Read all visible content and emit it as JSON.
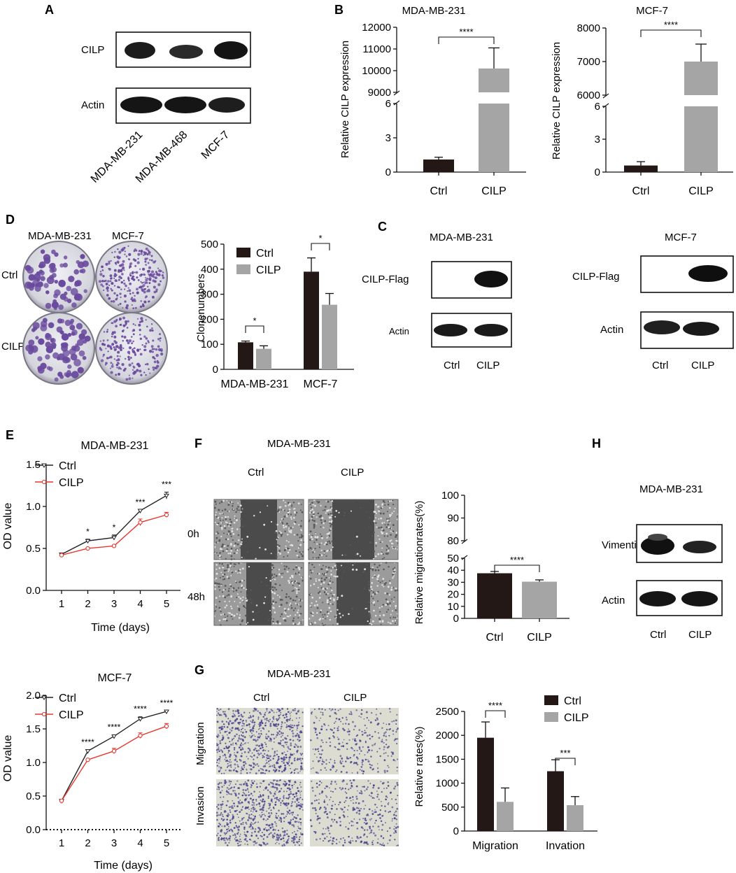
{
  "panels": {
    "A": {
      "letter": "A",
      "row_labels": [
        "CILP",
        "Actin"
      ],
      "lane_labels": [
        "MDA-MB-231",
        "MDA-MB-468",
        "MCF-7"
      ]
    },
    "B": {
      "letter": "B"
    },
    "C": {
      "letter": "C",
      "left": {
        "title": "MDA-MB-231",
        "rows": [
          "CILP-Flag",
          "Actin"
        ],
        "lanes": [
          "Ctrl",
          "CILP"
        ]
      },
      "right": {
        "title": "MCF-7",
        "rows": [
          "CILP-Flag",
          "Actin"
        ],
        "lanes": [
          "Ctrl",
          "CILP"
        ]
      }
    },
    "D": {
      "letter": "D",
      "col_labels": [
        "MDA-MB-231",
        "MCF-7"
      ],
      "row_labels": [
        "Ctrl",
        "CILP"
      ]
    },
    "E": {
      "letter": "E"
    },
    "F": {
      "letter": "F",
      "title": "MDA-MB-231",
      "col_labels": [
        "Ctrl",
        "CILP"
      ],
      "row_labels": [
        "0h",
        "48h"
      ]
    },
    "G": {
      "letter": "G",
      "title": "MDA-MB-231",
      "col_labels": [
        "Ctrl",
        "CILP"
      ],
      "row_labels": [
        "Migration",
        "Invasion"
      ]
    },
    "H": {
      "letter": "H",
      "title": "MDA-MB-231",
      "rows": [
        "Vimentin",
        "Actin"
      ],
      "lanes": [
        "Ctrl",
        "CILP"
      ]
    }
  },
  "colors": {
    "ctrl": "#231815",
    "cilp": "#a5a5a5",
    "line_ctrl": "#222222",
    "line_cilp": "#e8372e",
    "crystal_violet": "#6a4a9e"
  },
  "chart_data": [
    {
      "id": "B1",
      "type": "bar",
      "title": "MDA-MB-231",
      "ylabel": "Relative CILP expression",
      "categories": [
        "Ctrl",
        "CILP"
      ],
      "values": [
        1.1,
        10100
      ],
      "errors": [
        0.2,
        950
      ],
      "ylim": [
        0,
        12000
      ],
      "broken_axis": {
        "lower": [
          0,
          6
        ],
        "upper": [
          9000,
          12000
        ]
      },
      "yticks_lower": [
        "0",
        "3",
        "6"
      ],
      "yticks_upper": [
        "9000",
        "10000",
        "11000",
        "12000"
      ],
      "significance": "****"
    },
    {
      "id": "B2",
      "type": "bar",
      "title": "MCF-7",
      "ylabel": "Relative CILP expression",
      "categories": [
        "Ctrl",
        "CILP"
      ],
      "values": [
        0.6,
        7000
      ],
      "errors": [
        0.35,
        520
      ],
      "ylim": [
        0,
        8000
      ],
      "broken_axis": {
        "lower": [
          0,
          6
        ],
        "upper": [
          6000,
          8000
        ]
      },
      "yticks_lower": [
        "0",
        "3",
        "6"
      ],
      "yticks_upper": [
        "6000",
        "7000",
        "8000"
      ],
      "significance": "****"
    },
    {
      "id": "D",
      "type": "bar",
      "ylabel": "Clonenumbers",
      "categories": [
        "MDA-MB-231",
        "MCF-7"
      ],
      "series": [
        {
          "name": "Ctrl",
          "values": [
            108,
            390
          ],
          "errors": [
            5,
            55
          ]
        },
        {
          "name": "CILP",
          "values": [
            82,
            258
          ],
          "errors": [
            12,
            45
          ]
        }
      ],
      "ylim": [
        0,
        500
      ],
      "yticks": [
        "0",
        "100",
        "200",
        "300",
        "400",
        "500"
      ],
      "significance": [
        "*",
        "*"
      ],
      "legend": "top-left"
    },
    {
      "id": "E1",
      "type": "line",
      "title": "MDA-MB-231",
      "xlabel": "Time (days)",
      "ylabel": "OD value",
      "x": [
        1,
        2,
        3,
        4,
        5
      ],
      "series": [
        {
          "name": "Ctrl",
          "values": [
            0.43,
            0.59,
            0.63,
            0.95,
            1.13
          ],
          "errors": [
            0.01,
            0.02,
            0.03,
            0.01,
            0.04
          ]
        },
        {
          "name": "CILP",
          "values": [
            0.42,
            0.5,
            0.53,
            0.81,
            0.9
          ],
          "errors": [
            0.01,
            0.01,
            0.01,
            0.04,
            0.03
          ]
        }
      ],
      "ylim": [
        0,
        1.5
      ],
      "yticks": [
        "0.0",
        "0.5",
        "1.0",
        "1.5"
      ],
      "xticks": [
        "1",
        "2",
        "3",
        "4",
        "5"
      ],
      "significance": [
        "",
        "*",
        "*",
        "***",
        "***"
      ],
      "legend": "top-left"
    },
    {
      "id": "E2",
      "type": "line",
      "title": "MCF-7",
      "xlabel": "Time (days)",
      "ylabel": "OD value",
      "x": [
        1,
        2,
        3,
        4,
        5
      ],
      "series": [
        {
          "name": "Ctrl",
          "values": [
            0.43,
            1.17,
            1.39,
            1.65,
            1.76
          ],
          "errors": [
            0.01,
            0.02,
            0.02,
            0.03,
            0.01
          ]
        },
        {
          "name": "CILP",
          "values": [
            0.43,
            1.04,
            1.17,
            1.4,
            1.54
          ],
          "errors": [
            0.01,
            0.01,
            0.04,
            0.04,
            0.04
          ]
        }
      ],
      "ylim": [
        0,
        2.0
      ],
      "yticks": [
        "0.0",
        "0.5",
        "1.0",
        "1.5",
        "2.0"
      ],
      "xticks": [
        "1",
        "2",
        "3",
        "4",
        "5"
      ],
      "significance": [
        "",
        "****",
        "****",
        "****",
        "****"
      ],
      "legend": "top-left"
    },
    {
      "id": "F",
      "type": "bar",
      "ylabel": "Relative migrationrates(%)",
      "categories": [
        "Ctrl",
        "CILP"
      ],
      "values": [
        37.5,
        30.5
      ],
      "errors": [
        1.5,
        1.5
      ],
      "ylim": [
        0,
        100
      ],
      "broken_axis": {
        "lower": [
          0,
          50
        ],
        "upper": [
          80,
          100
        ]
      },
      "yticks_lower": [
        "0",
        "10",
        "20",
        "30",
        "40",
        "50"
      ],
      "yticks_upper": [
        "80",
        "90",
        "100"
      ],
      "significance": "****"
    },
    {
      "id": "G",
      "type": "bar",
      "ylabel": "Relative rates(%)",
      "categories": [
        "Migration",
        "Invation"
      ],
      "series": [
        {
          "name": "Ctrl",
          "values": [
            1950,
            1250
          ],
          "errors": [
            330,
            240
          ]
        },
        {
          "name": "CILP",
          "values": [
            610,
            540
          ],
          "errors": [
            290,
            180
          ]
        }
      ],
      "ylim": [
        0,
        2500
      ],
      "yticks": [
        "0",
        "500",
        "1000",
        "1500",
        "2000",
        "2500"
      ],
      "significance": [
        "****",
        "***"
      ],
      "legend": "top-right"
    }
  ]
}
